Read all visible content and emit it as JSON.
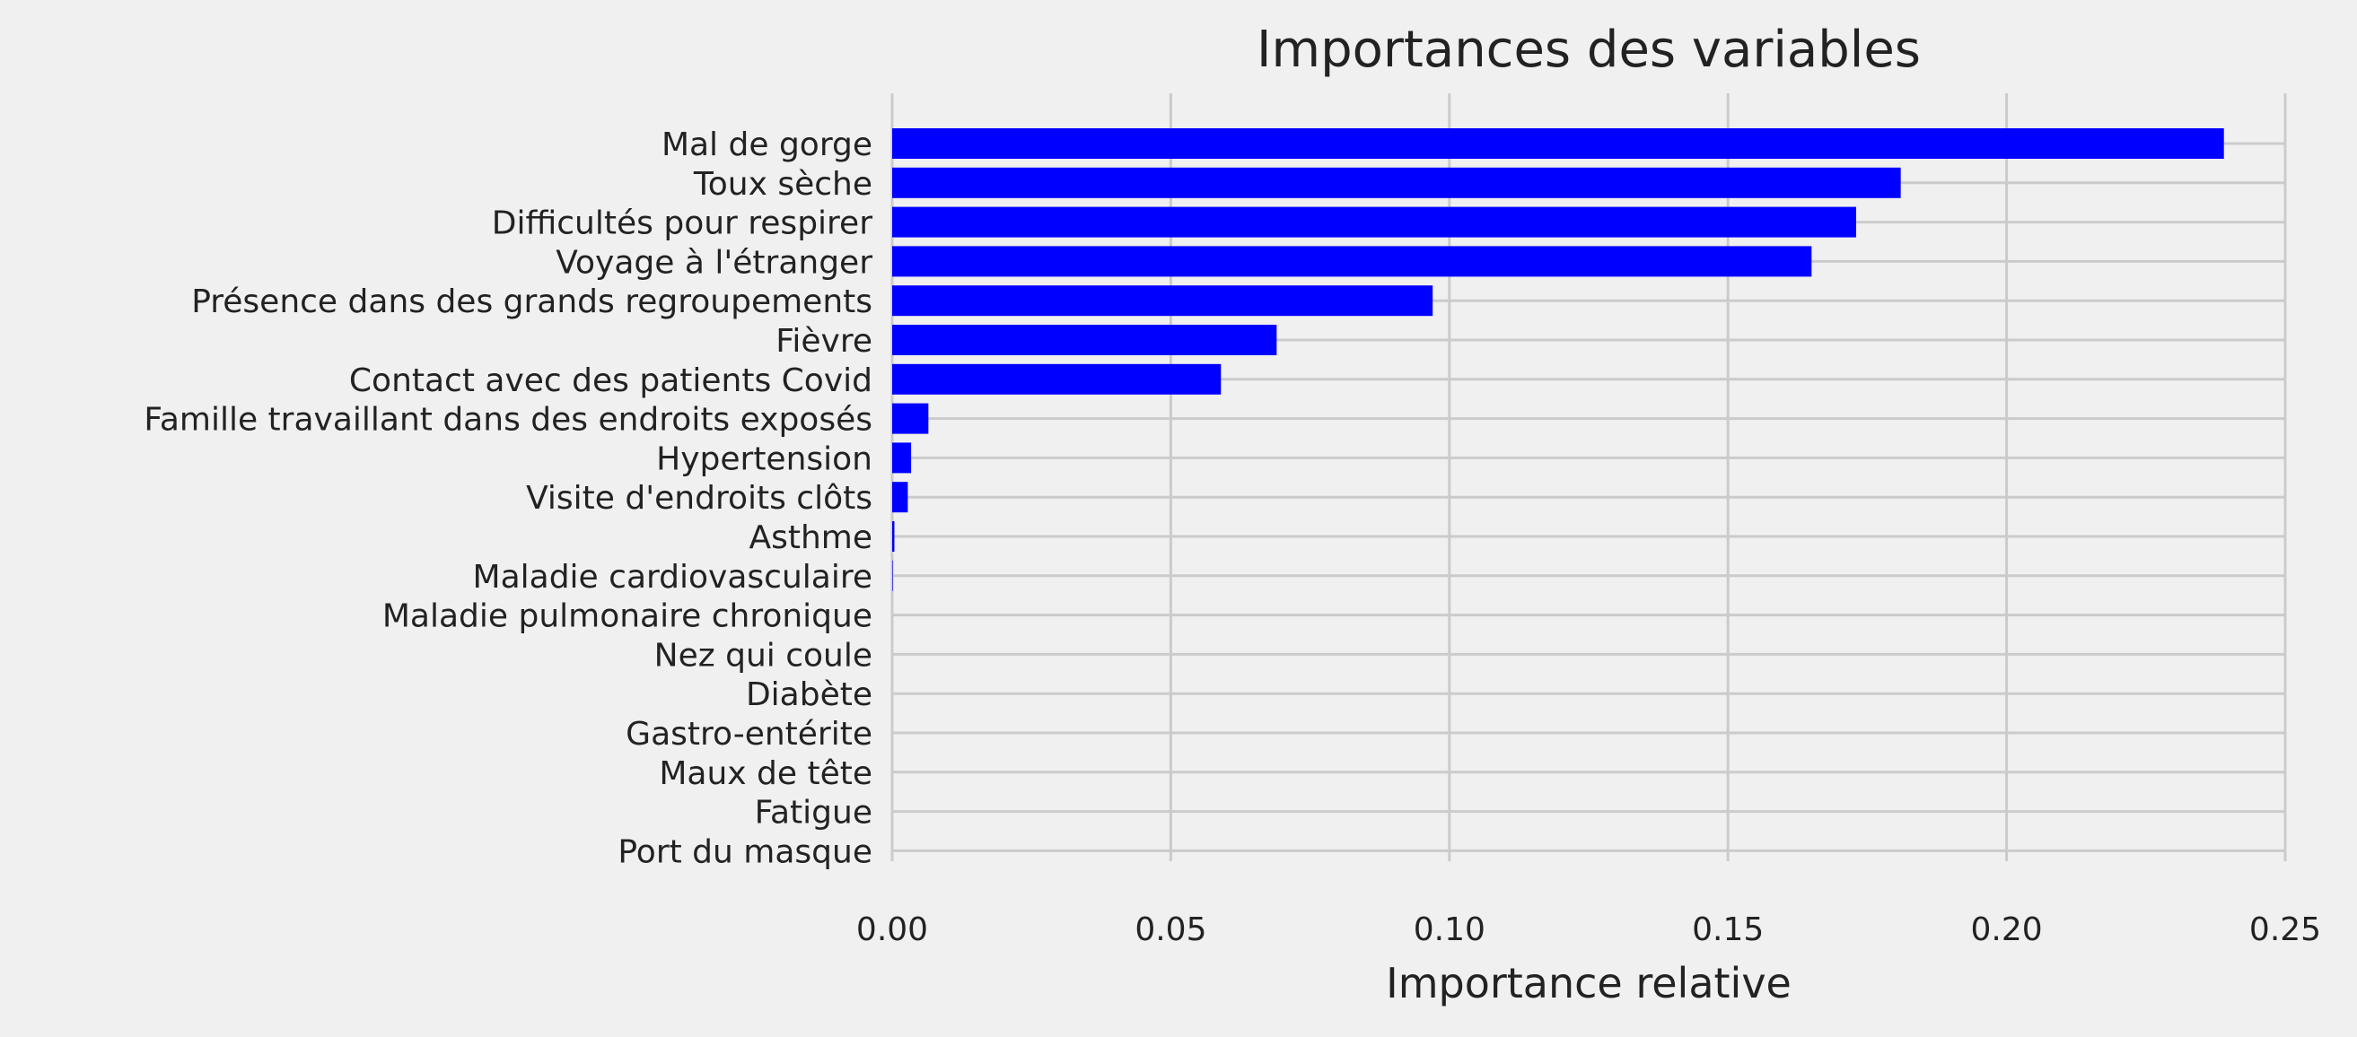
{
  "chart_data": {
    "type": "bar",
    "orientation": "horizontal",
    "title": "Importances des variables",
    "xlabel": "Importance relative",
    "ylabel": "",
    "xlim": [
      0,
      0.25
    ],
    "xticks": [
      "0.00",
      "0.05",
      "0.10",
      "0.15",
      "0.20",
      "0.25"
    ],
    "grid": true,
    "legend": "none",
    "bar_color": "#0000ff",
    "background": "#f0f0f0",
    "grid_color": "#cbcbcb",
    "categories": [
      "Mal de gorge",
      "Toux sèche",
      "Difficultés pour respirer",
      "Voyage à l'étranger",
      "Présence dans des grands regroupements",
      "Fièvre",
      "Contact avec des patients Covid",
      "Famille travaillant dans des endroits exposés",
      "Hypertension",
      "Visite d'endroits clôts",
      "Asthme",
      "Maladie cardiovasculaire",
      "Maladie pulmonaire chronique",
      "Nez qui coule",
      "Diabète",
      "Gastro-entérite",
      "Maux de tête",
      "Fatigue",
      "Port du masque"
    ],
    "values": [
      0.239,
      0.181,
      0.173,
      0.165,
      0.097,
      0.069,
      0.059,
      0.0065,
      0.0034,
      0.0028,
      0.0004,
      0.0001,
      0,
      0,
      0,
      0,
      0,
      0,
      0
    ]
  }
}
